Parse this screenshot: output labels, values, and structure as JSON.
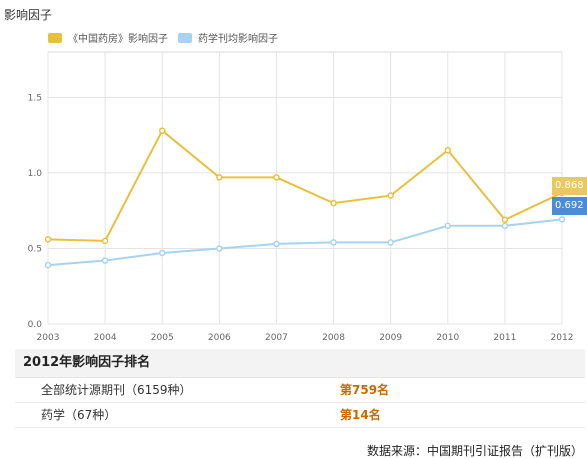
{
  "page": {
    "axis_unit_label": "影响因子",
    "source_text": "数据来源：中国期刊引证报告（扩刊版）"
  },
  "colors": {
    "series1": "#e8c03f",
    "series2": "#a8d3f0",
    "badge1": "#e9c763",
    "badge2": "#4a8cd6",
    "rank_value": "#c86a00"
  },
  "chart_data": {
    "type": "line",
    "x": [
      "2003",
      "2004",
      "2005",
      "2006",
      "2007",
      "2008",
      "2009",
      "2010",
      "2011",
      "2012"
    ],
    "ylim": [
      0,
      1.8
    ],
    "yticks": [
      "0.0",
      "0.5",
      "1.0",
      "1.5"
    ],
    "grid": true,
    "legend_position": "top-left",
    "series": [
      {
        "name": "《中国药房》影响因子",
        "values": [
          0.56,
          0.55,
          1.28,
          0.97,
          0.97,
          0.8,
          0.85,
          1.15,
          0.69,
          0.868
        ]
      },
      {
        "name": "药学刊均影响因子",
        "values": [
          0.39,
          0.42,
          0.47,
          0.5,
          0.53,
          0.54,
          0.54,
          0.65,
          0.65,
          0.692
        ]
      }
    ],
    "end_labels": [
      "0.868",
      "0.692"
    ]
  },
  "ranking": {
    "title": "2012年影响因子排名",
    "rows": [
      {
        "label": "全部统计源期刊（6159种）",
        "value": "第759名"
      },
      {
        "label": "药学（67种）",
        "value": "第14名"
      }
    ]
  }
}
